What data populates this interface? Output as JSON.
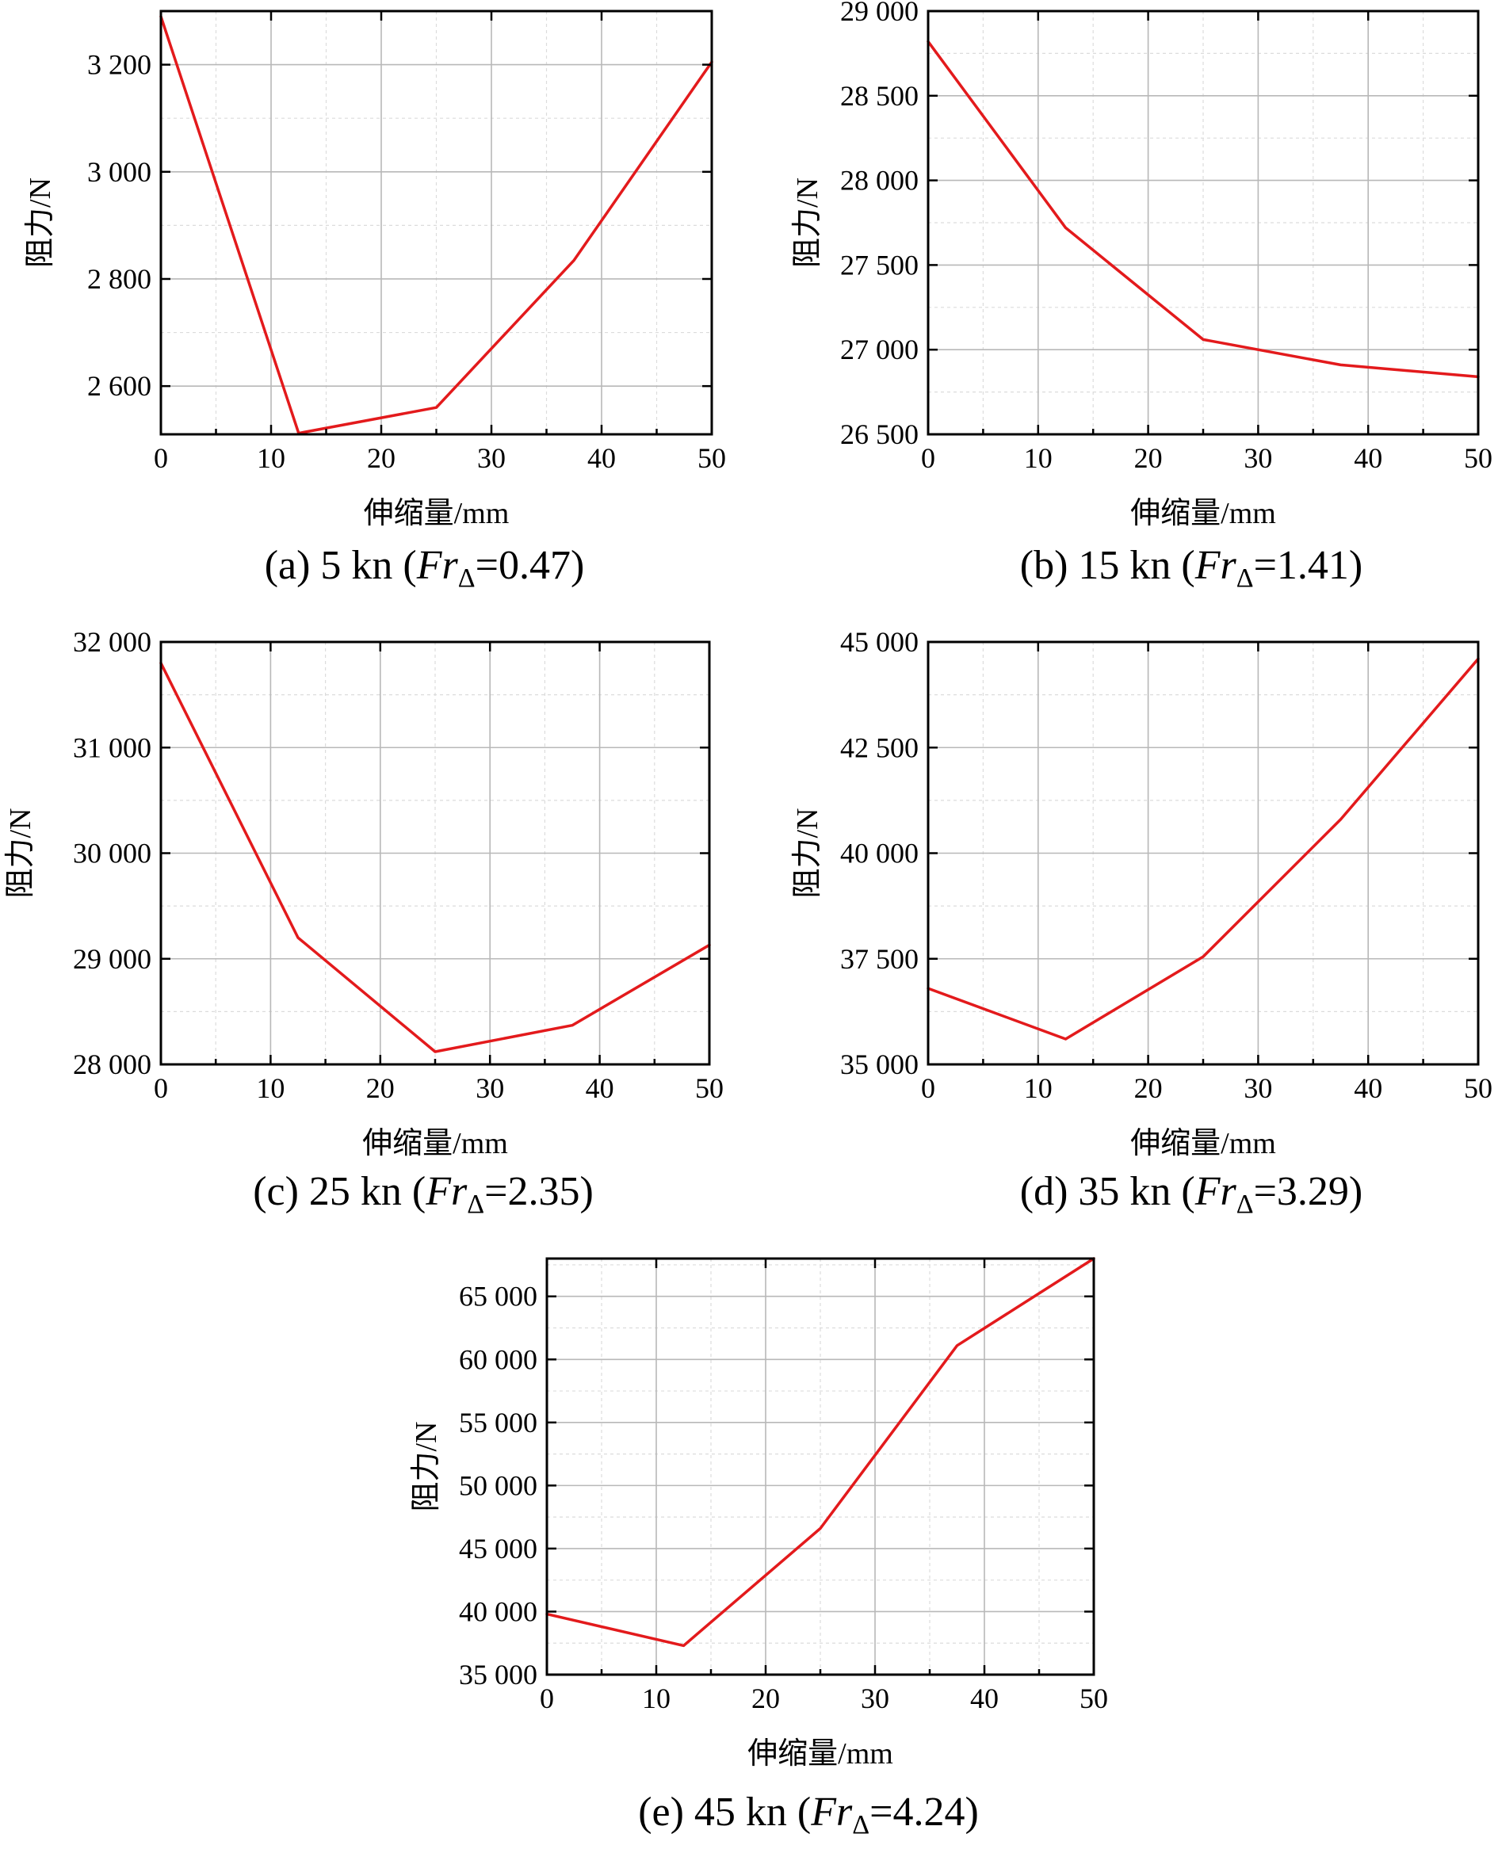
{
  "colors": {
    "series": "#e31a1c",
    "frame": "#000000"
  },
  "chart_data": [
    {
      "type": "line",
      "panel": "a",
      "xlabel": "伸缩量/mm",
      "ylabel": "阻力/N",
      "xlim": [
        0,
        50
      ],
      "ylim": [
        2510,
        3300
      ],
      "xticks": [
        0,
        10,
        20,
        30,
        40,
        50
      ],
      "xtick_labels": [
        "0",
        "10",
        "20",
        "30",
        "40",
        "50"
      ],
      "yticks": [
        2600,
        2800,
        3000,
        3200
      ],
      "ytick_labels": [
        "2 600",
        "2 800",
        "3 000",
        "3 200"
      ],
      "grid": true,
      "series": [
        {
          "name": "5 kn",
          "x": [
            0,
            12.5,
            25,
            37.5,
            50
          ],
          "values": [
            3290,
            2512,
            2560,
            2835,
            3205
          ]
        }
      ],
      "caption": {
        "prefix": "(a) 5 kn (",
        "fr": "Fr",
        "sub": "Δ",
        "suffix": "=0.47)"
      }
    },
    {
      "type": "line",
      "panel": "b",
      "xlabel": "伸缩量/mm",
      "ylabel": "阻力/N",
      "xlim": [
        0,
        50
      ],
      "ylim": [
        26500,
        29000
      ],
      "xticks": [
        0,
        10,
        20,
        30,
        40,
        50
      ],
      "xtick_labels": [
        "0",
        "10",
        "20",
        "30",
        "40",
        "50"
      ],
      "yticks": [
        26500,
        27000,
        27500,
        28000,
        28500,
        29000
      ],
      "ytick_labels": [
        "26 500",
        "27 000",
        "27 500",
        "28 000",
        "28 500",
        "29 000"
      ],
      "grid": true,
      "series": [
        {
          "name": "15 kn",
          "x": [
            0,
            12.5,
            25,
            37.5,
            50
          ],
          "values": [
            28820,
            27720,
            27060,
            26910,
            26840
          ]
        }
      ],
      "caption": {
        "prefix": "(b) 15 kn (",
        "fr": "Fr",
        "sub": "Δ",
        "suffix": "=1.41)"
      }
    },
    {
      "type": "line",
      "panel": "c",
      "xlabel": "伸缩量/mm",
      "ylabel": "阻力/N",
      "xlim": [
        0,
        50
      ],
      "ylim": [
        28000,
        32000
      ],
      "xticks": [
        0,
        10,
        20,
        30,
        40,
        50
      ],
      "xtick_labels": [
        "0",
        "10",
        "20",
        "30",
        "40",
        "50"
      ],
      "yticks": [
        28000,
        29000,
        30000,
        31000,
        32000
      ],
      "ytick_labels": [
        "28 000",
        "29 000",
        "30 000",
        "31 000",
        "32 000"
      ],
      "grid": true,
      "series": [
        {
          "name": "25 kn",
          "x": [
            0,
            12.5,
            25,
            37.5,
            50
          ],
          "values": [
            31800,
            29200,
            28120,
            28370,
            29130
          ]
        }
      ],
      "caption": {
        "prefix": "(c) 25 kn (",
        "fr": "Fr",
        "sub": "Δ",
        "suffix": "=2.35)"
      }
    },
    {
      "type": "line",
      "panel": "d",
      "xlabel": "伸缩量/mm",
      "ylabel": "阻力/N",
      "xlim": [
        0,
        50
      ],
      "ylim": [
        35000,
        45000
      ],
      "xticks": [
        0,
        10,
        20,
        30,
        40,
        50
      ],
      "xtick_labels": [
        "0",
        "10",
        "20",
        "30",
        "40",
        "50"
      ],
      "yticks": [
        35000,
        37500,
        40000,
        42500,
        45000
      ],
      "ytick_labels": [
        "35 000",
        "37 500",
        "40 000",
        "42 500",
        "45 000"
      ],
      "grid": true,
      "series": [
        {
          "name": "35 kn",
          "x": [
            0,
            12.5,
            25,
            37.5,
            50
          ],
          "values": [
            36800,
            35600,
            37550,
            40800,
            44600
          ]
        }
      ],
      "caption": {
        "prefix": "(d) 35 kn (",
        "fr": "Fr",
        "sub": "Δ",
        "suffix": "=3.29)"
      }
    },
    {
      "type": "line",
      "panel": "e",
      "xlabel": "伸缩量/mm",
      "ylabel": "阻力/N",
      "xlim": [
        0,
        50
      ],
      "ylim": [
        35000,
        68000
      ],
      "xticks": [
        0,
        10,
        20,
        30,
        40,
        50
      ],
      "xtick_labels": [
        "0",
        "10",
        "20",
        "30",
        "40",
        "50"
      ],
      "yticks": [
        35000,
        40000,
        45000,
        50000,
        55000,
        60000,
        65000
      ],
      "ytick_labels": [
        "35 000",
        "40 000",
        "45 000",
        "50 000",
        "55 000",
        "60 000",
        "65 000"
      ],
      "grid": true,
      "series": [
        {
          "name": "45 kn",
          "x": [
            0,
            12.5,
            25,
            37.5,
            50
          ],
          "values": [
            39800,
            37300,
            46600,
            61100,
            68000
          ]
        }
      ],
      "caption": {
        "prefix": "(e) 45 kn (",
        "fr": "Fr",
        "sub": "Δ",
        "suffix": "=4.24)"
      }
    }
  ]
}
